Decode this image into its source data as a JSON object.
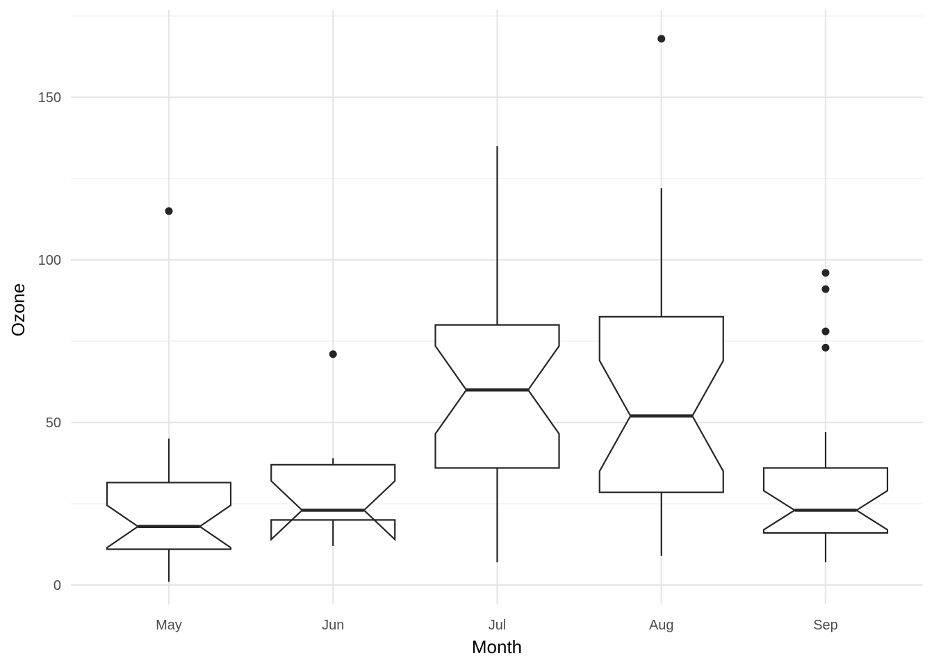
{
  "chart_data": {
    "type": "boxplot",
    "notched": true,
    "xlabel": "Month",
    "ylabel": "Ozone",
    "ylim": [
      -6,
      177
    ],
    "yticks": [
      0,
      50,
      100,
      150
    ],
    "categories": [
      "May",
      "Jun",
      "Jul",
      "Aug",
      "Sep"
    ],
    "boxes": [
      {
        "category": "May",
        "whisker_low": 1,
        "q1": 11,
        "median": 18,
        "q3": 31.5,
        "whisker_high": 45,
        "notch_low": 11.5,
        "notch_high": 24.5,
        "outliers": [
          115
        ]
      },
      {
        "category": "Jun",
        "whisker_low": 12,
        "q1": 20,
        "median": 23,
        "q3": 37,
        "whisker_high": 39,
        "notch_low": 14,
        "notch_high": 32,
        "outliers": [
          71
        ]
      },
      {
        "category": "Jul",
        "whisker_low": 7,
        "q1": 36,
        "median": 60,
        "q3": 80,
        "whisker_high": 135,
        "notch_low": 46.5,
        "notch_high": 73.5,
        "outliers": []
      },
      {
        "category": "Aug",
        "whisker_low": 9,
        "q1": 28.5,
        "median": 52,
        "q3": 82.5,
        "whisker_high": 122,
        "notch_low": 35,
        "notch_high": 69,
        "outliers": [
          168
        ]
      },
      {
        "category": "Sep",
        "whisker_low": 7,
        "q1": 16,
        "median": 23,
        "q3": 36,
        "whisker_high": 47,
        "notch_low": 17,
        "notch_high": 29,
        "outliers": [
          73,
          78,
          91,
          96
        ]
      }
    ],
    "grid": true,
    "legend": "none"
  }
}
